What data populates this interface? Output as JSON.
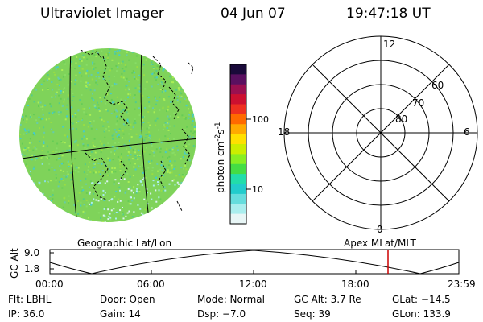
{
  "header": {
    "title": "Ultraviolet Imager",
    "date": "04 Jun 07",
    "time": "19:47:18 UT"
  },
  "colorbar": {
    "label_text": "photon cm",
    "label_sup1": "-2",
    "label_mid": "s",
    "label_sup2": "-1",
    "ticks": [
      "100",
      "10"
    ],
    "colors": [
      "#1a0a3a",
      "#5a1060",
      "#9a1050",
      "#cc1030",
      "#ee3020",
      "#ff6a00",
      "#ffaa00",
      "#ffe000",
      "#ccee00",
      "#88ee22",
      "#44dd44",
      "#22ddaa",
      "#22cccc",
      "#66dddd",
      "#aaeeee",
      "#e8f6f6"
    ]
  },
  "left_panel": {
    "label": "Geographic Lat/Lon"
  },
  "polar_panel": {
    "label": "Apex MLat/MLT",
    "mlt_labels": {
      "top": "12",
      "left": "18",
      "right": "6",
      "bottom": "0"
    },
    "lat_labels": [
      "60",
      "70",
      "80"
    ]
  },
  "altitude_plot": {
    "ylabel": "GC Alt",
    "yticks": [
      "9.0",
      "1.8"
    ],
    "xticks": [
      "00:00",
      "06:00",
      "12:00",
      "18:00",
      "23:59"
    ],
    "marker_color": "#cc0000"
  },
  "info": {
    "flt": "Flt: LBHL",
    "door": "Door: Open",
    "mode": "Mode: Normal",
    "gcalt": "GC Alt: 3.7 Re",
    "glat": "GLat: −14.5",
    "ip": "IP: 36.0",
    "gain": "Gain: 14",
    "dsp": "Dsp:   −7.0",
    "seq": "Seq: 39",
    "glon": "GLon: 133.9"
  }
}
